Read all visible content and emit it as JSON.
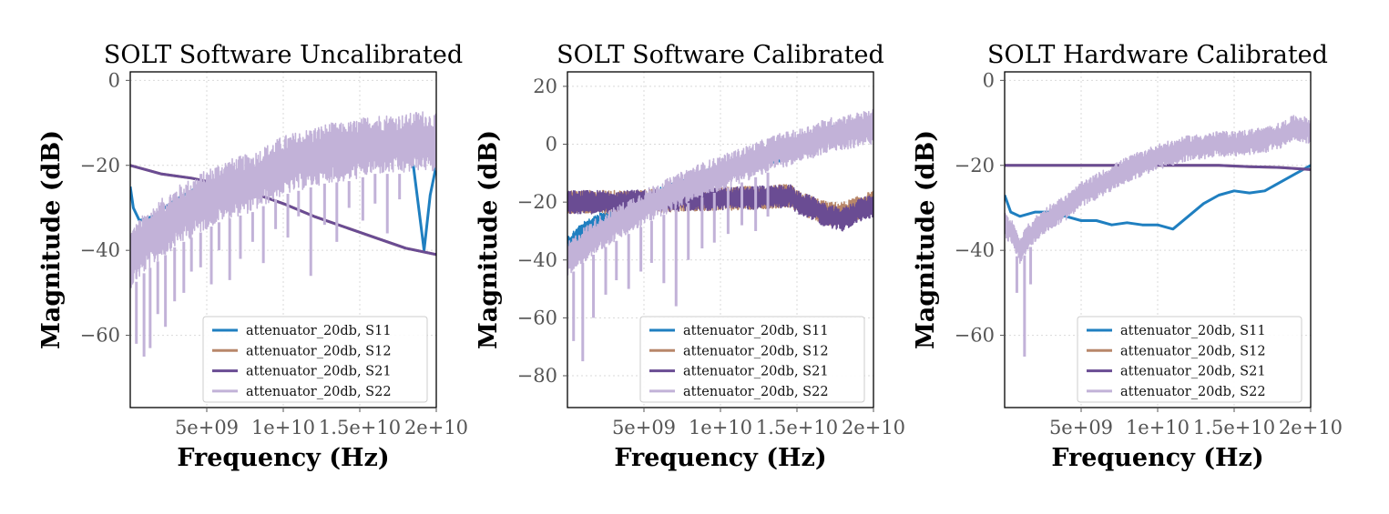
{
  "colors": {
    "S11": "#1f7fc0",
    "S12": "#b8876a",
    "S21": "#6a4c93",
    "S22": "#c2b2d8"
  },
  "chart_data": [
    {
      "type": "line",
      "title": "SOLT Software Uncalibrated",
      "xlabel": "Frequency (Hz)",
      "ylabel": "Magnitude (dB)",
      "xlim": [
        0,
        20000000000
      ],
      "ylim": [
        -77,
        2
      ],
      "xticks": [
        5000000000,
        10000000000,
        15000000000,
        20000000000
      ],
      "xtick_labels": [
        "5e+09",
        "1e+10",
        "1.5e+10",
        "2e+10"
      ],
      "yticks": [
        0,
        -20,
        -40,
        -60
      ],
      "ytick_labels": [
        "0",
        "−20",
        "−40",
        "−60"
      ],
      "grid": true,
      "legend_position": "lower-right",
      "series": [
        {
          "name": "attenuator_20db, S11",
          "key": "S11",
          "x": [
            0,
            200000000.0,
            600000000.0,
            1500000000.0,
            3000000000.0,
            5000000000.0,
            7000000000.0,
            9000000000.0,
            11000000000.0,
            13000000000.0,
            14500000000.0,
            15500000000.0,
            16500000000.0,
            17500000000.0,
            18500000000.0,
            19200000000.0,
            19600000000.0,
            20000000000.0
          ],
          "y": [
            -25,
            -30,
            -33,
            -32,
            -28,
            -24,
            -22,
            -20,
            -18,
            -16,
            -15,
            -17,
            -16,
            -17,
            -20,
            -40,
            -27,
            -20
          ]
        },
        {
          "name": "attenuator_20db, S12",
          "key": "S12",
          "x": [
            0,
            1000000000.0,
            2000000000.0,
            4000000000.0,
            6000000000.0,
            8000000000.0,
            10000000000.0,
            12000000000.0,
            14000000000.0,
            16000000000.0,
            18000000000.0,
            20000000000.0
          ],
          "y": [
            -20,
            -21,
            -22,
            -23,
            -24.5,
            -26.5,
            -29,
            -32,
            -34.5,
            -37,
            -39.5,
            -41
          ]
        },
        {
          "name": "attenuator_20db, S21",
          "key": "S21",
          "x": [
            0,
            1000000000.0,
            2000000000.0,
            4000000000.0,
            6000000000.0,
            8000000000.0,
            10000000000.0,
            12000000000.0,
            14000000000.0,
            16000000000.0,
            18000000000.0,
            20000000000.0
          ],
          "y": [
            -20,
            -21,
            -22,
            -23,
            -24.5,
            -26.5,
            -29,
            -32,
            -34.5,
            -37,
            -39.5,
            -41
          ]
        },
        {
          "name": "attenuator_20db, S22",
          "key": "S22",
          "x": [
            0,
            1000000000.0,
            2000000000.0,
            3000000000.0,
            4000000000.0,
            5000000000.0,
            6000000000.0,
            7000000000.0,
            8000000000.0,
            9000000000.0,
            10000000000.0,
            11000000000.0,
            12000000000.0,
            13000000000.0,
            14000000000.0,
            15000000000.0,
            16000000000.0,
            17000000000.0,
            18000000000.0,
            19000000000.0,
            20000000000.0
          ],
          "y": [
            -42,
            -38,
            -35,
            -32,
            -30,
            -28,
            -26,
            -25,
            -24,
            -22,
            -20,
            -19,
            -18,
            -17,
            -17,
            -16,
            -15,
            -15,
            -15,
            -14,
            -15
          ],
          "band": 7,
          "dips_x": [
            400000000.0,
            900000000.0,
            1300000000.0,
            1800000000.0,
            2300000000.0,
            2900000000.0,
            3500000000.0,
            4000000000.0,
            4600000000.0,
            5300000000.0,
            5800000000.0,
            6500000000.0,
            7200000000.0,
            8000000000.0,
            8700000000.0,
            9500000000.0,
            10300000000.0,
            11000000000.0,
            11800000000.0,
            12700000000.0,
            13500000000.0,
            14300000000.0,
            15200000000.0,
            16000000000.0,
            16800000000.0,
            17600000000.0
          ],
          "dips_y": [
            -62,
            -65,
            -63,
            -55,
            -58,
            -52,
            -50,
            -45,
            -44,
            -48,
            -40,
            -47,
            -42,
            -38,
            -43,
            -35,
            -37,
            -32,
            -46,
            -34,
            -38,
            -30,
            -33,
            -29,
            -36,
            -28
          ]
        }
      ]
    },
    {
      "type": "line",
      "title": "SOLT Software Calibrated",
      "xlabel": "Frequency (Hz)",
      "ylabel": "Magnitude (dB)",
      "xlim": [
        0,
        20000000000
      ],
      "ylim": [
        -91,
        25
      ],
      "xticks": [
        5000000000,
        10000000000,
        15000000000,
        20000000000
      ],
      "xtick_labels": [
        "5e+09",
        "1e+10",
        "1.5e+10",
        "2e+10"
      ],
      "yticks": [
        20,
        0,
        -20,
        -40,
        -60,
        -80
      ],
      "ytick_labels": [
        "20",
        "0",
        "−20",
        "−40",
        "−60",
        "−80"
      ],
      "grid": true,
      "legend_position": "lower-right",
      "series": [
        {
          "name": "attenuator_20db, S11",
          "key": "S11",
          "x": [
            0,
            1000000000.0,
            2000000000.0,
            3000000000.0,
            4000000000.0,
            5000000000.0,
            6000000000.0,
            7000000000.0,
            8000000000.0,
            9000000000.0,
            10000000000.0,
            11000000000.0,
            12000000000.0,
            13000000000.0,
            14000000000.0,
            15000000000.0,
            16000000000.0,
            17000000000.0,
            18000000000.0,
            19000000000.0,
            20000000000.0
          ],
          "y": [
            -35,
            -30,
            -27,
            -25,
            -23,
            -20,
            -18,
            -16,
            -14,
            -12,
            -10,
            -8,
            -6,
            -4,
            -3,
            -1,
            1,
            3,
            4,
            5,
            6
          ],
          "band": 3
        },
        {
          "name": "attenuator_20db, S12",
          "key": "S12",
          "x": [
            0,
            2000000000.0,
            4000000000.0,
            6000000000.0,
            8000000000.0,
            10000000000.0,
            12000000000.0,
            14000000000.0,
            14600000000.0,
            15000000000.0,
            16000000000.0,
            17000000000.0,
            18000000000.0,
            19000000000.0,
            20000000000.0
          ],
          "y": [
            -20,
            -20,
            -20,
            -19.5,
            -19,
            -19,
            -18.5,
            -18,
            -18,
            -20,
            -22,
            -24,
            -24,
            -22,
            -20
          ],
          "band": 4
        },
        {
          "name": "attenuator_20db, S21",
          "key": "S21",
          "x": [
            0,
            2000000000.0,
            4000000000.0,
            6000000000.0,
            8000000000.0,
            10000000000.0,
            12000000000.0,
            14000000000.0,
            14600000000.0,
            15000000000.0,
            16000000000.0,
            17000000000.0,
            18000000000.0,
            19000000000.0,
            20000000000.0
          ],
          "y": [
            -20,
            -20,
            -20,
            -19.5,
            -19,
            -19,
            -18.5,
            -18,
            -18,
            -20,
            -22,
            -25,
            -26,
            -23,
            -21
          ],
          "band": 4
        },
        {
          "name": "attenuator_20db, S22",
          "key": "S22",
          "x": [
            0,
            1000000000.0,
            2000000000.0,
            3000000000.0,
            4000000000.0,
            5000000000.0,
            6000000000.0,
            7000000000.0,
            8000000000.0,
            9000000000.0,
            10000000000.0,
            11000000000.0,
            12000000000.0,
            13000000000.0,
            14000000000.0,
            15000000000.0,
            16000000000.0,
            17000000000.0,
            18000000000.0,
            19000000000.0,
            20000000000.0
          ],
          "y": [
            -40,
            -35,
            -31,
            -28,
            -25,
            -22,
            -19,
            -17,
            -14,
            -12,
            -10,
            -8,
            -6,
            -4,
            -2,
            -1,
            1,
            3,
            4,
            5,
            6
          ],
          "band": 6,
          "dips_x": [
            400000000.0,
            1000000000.0,
            1700000000.0,
            2500000000.0,
            3200000000.0,
            4000000000.0,
            4800000000.0,
            5500000000.0,
            6300000000.0,
            7100000000.0,
            7900000000.0,
            8800000000.0,
            9600000000.0,
            10500000000.0,
            11400000000.0,
            12300000000.0,
            13100000000.0
          ],
          "dips_y": [
            -68,
            -75,
            -60,
            -52,
            -47,
            -50,
            -44,
            -41,
            -48,
            -56,
            -40,
            -36,
            -34,
            -31,
            -28,
            -30,
            -25
          ]
        }
      ]
    },
    {
      "type": "line",
      "title": "SOLT Hardware Calibrated",
      "xlabel": "Frequency (Hz)",
      "ylabel": "Magnitude (dB)",
      "xlim": [
        0,
        20000000000
      ],
      "ylim": [
        -77,
        2
      ],
      "xticks": [
        5000000000,
        10000000000,
        15000000000,
        20000000000
      ],
      "xtick_labels": [
        "5e+09",
        "1e+10",
        "1.5e+10",
        "2e+10"
      ],
      "yticks": [
        0,
        -20,
        -40,
        -60
      ],
      "ytick_labels": [
        "0",
        "−20",
        "−40",
        "−60"
      ],
      "grid": true,
      "legend_position": "lower-right",
      "series": [
        {
          "name": "attenuator_20db, S11",
          "key": "S11",
          "x": [
            0,
            400000000.0,
            1000000000.0,
            2000000000.0,
            3000000000.0,
            4000000000.0,
            5000000000.0,
            6000000000.0,
            7000000000.0,
            8000000000.0,
            9000000000.0,
            10000000000.0,
            11000000000.0,
            12000000000.0,
            13000000000.0,
            14000000000.0,
            15000000000.0,
            16000000000.0,
            17000000000.0,
            18000000000.0,
            19000000000.0,
            20000000000.0
          ],
          "y": [
            -27,
            -31,
            -32,
            -31,
            -31,
            -32,
            -33,
            -33,
            -34,
            -33.5,
            -34,
            -34,
            -35,
            -32,
            -29,
            -27,
            -26,
            -26.5,
            -26,
            -24,
            -22,
            -20
          ]
        },
        {
          "name": "attenuator_20db, S12",
          "key": "S12",
          "x": [
            0,
            2000000000.0,
            4000000000.0,
            6000000000.0,
            8000000000.0,
            10000000000.0,
            12000000000.0,
            14000000000.0,
            16000000000.0,
            18000000000.0,
            20000000000.0
          ],
          "y": [
            -20,
            -20,
            -20,
            -20,
            -20,
            -20,
            -20,
            -20,
            -20.3,
            -20.5,
            -21
          ]
        },
        {
          "name": "attenuator_20db, S21",
          "key": "S21",
          "x": [
            0,
            2000000000.0,
            4000000000.0,
            6000000000.0,
            8000000000.0,
            10000000000.0,
            12000000000.0,
            14000000000.0,
            16000000000.0,
            18000000000.0,
            20000000000.0
          ],
          "y": [
            -20,
            -20,
            -20,
            -20,
            -20,
            -20,
            -20,
            -20,
            -20.3,
            -20.5,
            -21
          ]
        },
        {
          "name": "attenuator_20db, S22",
          "key": "S22",
          "x": [
            0,
            500000000.0,
            1000000000.0,
            1500000000.0,
            2000000000.0,
            3000000000.0,
            4000000000.0,
            5000000000.0,
            6000000000.0,
            7000000000.0,
            8000000000.0,
            9000000000.0,
            10000000000.0,
            11000000000.0,
            12000000000.0,
            13000000000.0,
            14000000000.0,
            15000000000.0,
            16000000000.0,
            17000000000.0,
            18000000000.0,
            19000000000.0,
            20000000000.0
          ],
          "y": [
            -34,
            -36,
            -40,
            -37,
            -35,
            -32,
            -30,
            -27,
            -25,
            -23,
            -21,
            -19.5,
            -18,
            -17,
            -16,
            -15.5,
            -15,
            -15,
            -14.5,
            -14,
            -13,
            -11,
            -12
          ],
          "band": 3,
          "dips_x": [
            800000000.0,
            1300000000.0,
            1700000000.0
          ],
          "dips_y": [
            -50,
            -65,
            -48
          ]
        }
      ]
    }
  ]
}
